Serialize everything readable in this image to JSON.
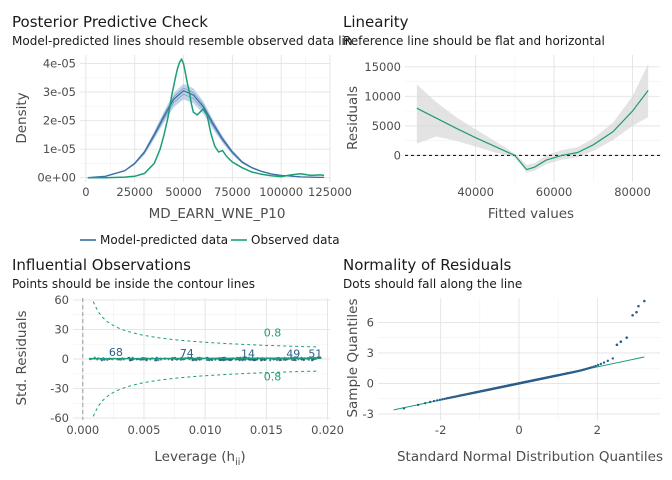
{
  "colors": {
    "model": "#3a6ea5",
    "model_band": "#a9c2e0",
    "observed": "#1b9e77",
    "band": "#d9d9d9",
    "points": "#2c5f8a",
    "contour": "#1b9e77",
    "vline": "#999999"
  },
  "chart_data": [
    {
      "id": "ppc",
      "type": "line",
      "title": "Posterior Predictive Check",
      "subtitle": "Model-predicted lines should resemble observed data lin",
      "xlabel": "MD_EARN_WNE_P10",
      "ylabel": "Density",
      "xlim": [
        -3000,
        125000
      ],
      "ylim": [
        -1.5e-06,
        4.3e-05
      ],
      "x_ticks": [
        0,
        25000,
        50000,
        75000,
        100000,
        125000
      ],
      "x_tick_labels": [
        "0",
        "25000",
        "50000",
        "75000",
        "100000",
        "125000"
      ],
      "y_ticks": [
        0,
        1e-05,
        2e-05,
        3e-05,
        4e-05
      ],
      "y_tick_labels": [
        "0e+00",
        "1e-05",
        "2e-05",
        "3e-05",
        "4e-05"
      ],
      "legend": [
        "Model-predicted data",
        "Observed data"
      ],
      "legend_position": "bottom",
      "series": [
        {
          "name": "Observed data",
          "x": [
            1000,
            10000,
            20000,
            25000,
            30000,
            35000,
            38000,
            40000,
            42000,
            44000,
            46000,
            47000,
            48000,
            49000,
            50000,
            51000,
            52000,
            53000,
            54000,
            55000,
            57000,
            60000,
            62000,
            64000,
            66000,
            68000,
            70000,
            72000,
            75000,
            80000,
            85000,
            90000,
            95000,
            100000,
            105000,
            110000,
            115000,
            120000,
            122000
          ],
          "y": [
            0,
            5e-09,
            2e-07,
            5e-07,
            1.5e-06,
            5e-06,
            1e-05,
            1.5e-05,
            2.1e-05,
            2.9e-05,
            3.55e-05,
            3.85e-05,
            4.05e-05,
            4.15e-05,
            4e-05,
            3.65e-05,
            3.3e-05,
            3e-05,
            2.6e-05,
            2.3e-05,
            2.2e-05,
            2.4e-05,
            2.2e-05,
            1.55e-05,
            1.1e-05,
            9e-06,
            9.5e-06,
            7.5e-06,
            5.5e-06,
            3.5e-06,
            2e-06,
            1.2e-06,
            7e-07,
            4e-07,
            1e-06,
            1.4e-06,
            8e-07,
            1e-06,
            8e-07
          ]
        },
        {
          "name": "Model-predicted data",
          "x": [
            1000,
            10000,
            20000,
            25000,
            30000,
            35000,
            40000,
            45000,
            50000,
            55000,
            60000,
            65000,
            70000,
            75000,
            80000,
            85000,
            90000,
            95000,
            100000,
            110000,
            120000,
            122000
          ],
          "y": [
            0,
            5e-07,
            2.5e-06,
            5e-06,
            9e-06,
            1.5e-05,
            2.15e-05,
            2.75e-05,
            3.05e-05,
            2.9e-05,
            2.5e-05,
            1.9e-05,
            1.35e-05,
            9e-06,
            5.5e-06,
            3.5e-06,
            2.2e-06,
            1.3e-06,
            8e-07,
            3e-07,
            1e-07,
            1e-07
          ]
        }
      ]
    },
    {
      "id": "linearity",
      "type": "line",
      "title": "Linearity",
      "subtitle": "Reference line should be flat and horizontal",
      "xlabel": "Fitted values",
      "ylabel": "Residuals",
      "xlim": [
        22000,
        87000
      ],
      "ylim": [
        -4500,
        17000
      ],
      "x_ticks": [
        40000,
        60000,
        80000
      ],
      "x_tick_labels": [
        "40000",
        "60000",
        "80000"
      ],
      "y_ticks": [
        0,
        5000,
        10000,
        15000
      ],
      "y_tick_labels": [
        "0",
        "5000",
        "10000",
        "15000"
      ],
      "reference_line": 0,
      "series": [
        {
          "name": "",
          "x": [
            25000,
            30000,
            35000,
            40000,
            45000,
            50000,
            53000,
            55000,
            58000,
            62000,
            66000,
            70000,
            75000,
            80000,
            84000
          ],
          "y": [
            8000,
            6300,
            4600,
            3000,
            1500,
            0,
            -2400,
            -2000,
            -800,
            0,
            500,
            1800,
            4000,
            7500,
            11000
          ]
        }
      ],
      "band_upper": [
        12000,
        9000,
        6500,
        4400,
        2400,
        300,
        -1600,
        -1300,
        0,
        900,
        1400,
        2900,
        5500,
        10000,
        15500
      ],
      "band_lower": [
        2000,
        3200,
        2500,
        1500,
        500,
        -300,
        -2900,
        -2600,
        -1500,
        -700,
        -300,
        800,
        2600,
        5000,
        6500
      ]
    },
    {
      "id": "influential",
      "type": "scatter",
      "title": "Influential Observations",
      "subtitle": "Points should be inside the contour lines",
      "xlabel": "Leverage (h",
      "xlabel_sub": "ii",
      "xlabel_suffix": ")",
      "ylabel": "Std. Residuals",
      "xlim": [
        -0.0008,
        0.0202
      ],
      "ylim": [
        -62,
        62
      ],
      "x_ticks": [
        0,
        0.005,
        0.01,
        0.015,
        0.02
      ],
      "x_tick_labels": [
        "0.000",
        "0.005",
        "0.010",
        "0.015",
        "0.020"
      ],
      "y_ticks": [
        -60,
        -30,
        0,
        30,
        60
      ],
      "y_tick_labels": [
        "-60",
        "-30",
        "0",
        "30",
        "60"
      ],
      "contour_label": "0.8",
      "point_labels": [
        {
          "text": "68",
          "x": 0.0027,
          "y": 3
        },
        {
          "text": "74",
          "x": 0.0085,
          "y": 2
        },
        {
          "text": "14",
          "x": 0.0135,
          "y": 1.5
        },
        {
          "text": "49",
          "x": 0.0172,
          "y": 1.5
        },
        {
          "text": "51",
          "x": 0.019,
          "y": 1.5
        }
      ],
      "smooth_x": [
        0.0005,
        0.0195
      ],
      "smooth_y": [
        0.3,
        0.8
      ]
    },
    {
      "id": "normality",
      "type": "scatter",
      "title": "Normality of Residuals",
      "subtitle": "Dots should fall along the line",
      "xlabel": "Standard Normal Distribution Quantiles",
      "ylabel": "Sample Quantiles",
      "xlim": [
        -3.6,
        3.6
      ],
      "ylim": [
        -3.6,
        8.4
      ],
      "x_ticks": [
        -2,
        0,
        2
      ],
      "x_tick_labels": [
        "-2",
        "0",
        "2"
      ],
      "y_ticks": [
        -3,
        0,
        3,
        6
      ],
      "y_tick_labels": [
        "-3",
        "0",
        "3",
        "6"
      ],
      "ref_line_x": [
        -3.2,
        3.2
      ],
      "ref_line_y": [
        -2.6,
        2.6
      ],
      "outliers": [
        {
          "x": 2.9,
          "y": 6.7
        },
        {
          "x": 3.0,
          "y": 7.0
        },
        {
          "x": 3.05,
          "y": 7.6
        },
        {
          "x": 3.2,
          "y": 8.1
        },
        {
          "x": 2.75,
          "y": 4.5
        },
        {
          "x": 2.6,
          "y": 4.1
        },
        {
          "x": 2.5,
          "y": 3.8
        }
      ]
    }
  ]
}
